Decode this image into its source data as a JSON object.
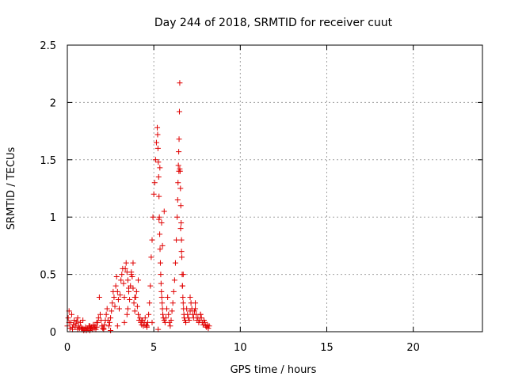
{
  "chart_data": {
    "type": "scatter",
    "title": "Day 244 of 2018, SRMTID for receiver cuut",
    "xlabel": "GPS time / hours",
    "ylabel": "SRMTID / TECUs",
    "xlim": [
      0,
      24
    ],
    "ylim": [
      0,
      2.5
    ],
    "xticks": [
      0,
      5,
      10,
      15,
      20
    ],
    "xtick_labels": [
      "0",
      "5",
      "10",
      "15",
      "20"
    ],
    "yticks": [
      0,
      0.5,
      1,
      1.5,
      2,
      2.5
    ],
    "ytick_labels": [
      "0",
      "0.5",
      "1",
      "1.5",
      "2",
      "2.5"
    ],
    "grid": true,
    "marker": "+",
    "color": "#e00000",
    "series": [
      {
        "name": "SRMTID",
        "x": [
          0.0,
          0.05,
          0.1,
          0.15,
          0.2,
          0.25,
          0.3,
          0.35,
          0.4,
          0.45,
          0.5,
          0.55,
          0.6,
          0.65,
          0.7,
          0.75,
          0.8,
          0.85,
          0.9,
          0.95,
          1.0,
          1.05,
          1.1,
          1.15,
          1.2,
          1.25,
          1.3,
          1.35,
          1.4,
          1.45,
          1.5,
          1.55,
          1.6,
          1.65,
          1.7,
          1.75,
          1.8,
          1.85,
          1.9,
          1.95,
          2.0,
          2.05,
          2.1,
          2.15,
          2.2,
          2.25,
          2.3,
          2.35,
          2.4,
          2.45,
          2.5,
          2.55,
          2.6,
          2.65,
          2.7,
          2.75,
          2.8,
          2.85,
          2.9,
          2.95,
          3.0,
          3.05,
          3.1,
          3.15,
          3.2,
          3.25,
          3.3,
          3.35,
          3.4,
          3.45,
          3.5,
          3.55,
          3.6,
          3.65,
          3.7,
          3.75,
          3.8,
          3.85,
          3.9,
          3.95,
          4.0,
          4.05,
          4.1,
          4.15,
          4.2,
          4.25,
          4.3,
          4.35,
          4.4,
          4.45,
          4.5,
          4.55,
          4.6,
          4.65,
          4.7,
          4.75,
          4.8,
          4.85,
          4.9,
          4.95,
          5.0,
          5.05,
          5.1,
          5.15,
          5.2,
          5.22,
          5.24,
          5.26,
          5.28,
          5.3,
          5.32,
          5.34,
          5.36,
          5.38,
          5.4,
          5.42,
          5.44,
          5.46,
          5.48,
          5.5,
          5.52,
          5.55,
          5.6,
          5.65,
          5.7,
          5.75,
          5.8,
          5.85,
          5.9,
          5.95,
          6.0,
          6.05,
          6.1,
          6.15,
          6.2,
          6.25,
          6.3,
          6.35,
          6.38,
          6.4,
          6.42,
          6.44,
          6.46,
          6.48,
          6.5,
          6.52,
          6.54,
          6.56,
          6.58,
          6.6,
          6.62,
          6.64,
          6.66,
          6.68,
          6.7,
          6.72,
          6.74,
          6.76,
          6.8,
          6.85,
          6.9,
          6.95,
          7.0,
          7.05,
          7.1,
          7.15,
          7.2,
          7.25,
          7.3,
          7.35,
          7.4,
          7.45,
          7.5,
          7.55,
          7.6,
          7.65,
          7.7,
          7.75,
          7.8,
          7.85,
          7.9,
          7.95,
          8.0,
          8.05,
          8.1,
          8.15,
          8.2,
          0.1,
          0.3,
          0.6,
          0.9,
          1.3,
          1.7,
          2.1,
          2.5,
          2.9,
          3.3,
          3.45,
          3.5,
          3.55,
          3.7,
          3.8,
          3.9,
          4.1,
          4.3,
          4.6,
          4.9,
          5.25,
          5.3,
          5.35,
          5.45,
          5.5,
          5.6,
          6.45,
          6.5,
          6.55,
          6.6,
          6.65,
          6.7,
          7.1,
          7.4,
          7.7
        ],
        "y": [
          0.05,
          0.12,
          0.18,
          0.03,
          0.08,
          0.15,
          0.02,
          0.06,
          0.1,
          0.04,
          0.07,
          0.09,
          0.12,
          0.05,
          0.03,
          0.08,
          0.04,
          0.02,
          0.03,
          0.01,
          0.02,
          0.04,
          0.01,
          0.03,
          0.02,
          0.05,
          0.01,
          0.03,
          0.04,
          0.02,
          0.06,
          0.03,
          0.05,
          0.02,
          0.04,
          0.08,
          0.12,
          0.3,
          0.15,
          0.1,
          0.05,
          0.03,
          0.02,
          0.06,
          0.1,
          0.15,
          0.2,
          0.1,
          0.05,
          0.08,
          0.12,
          0.18,
          0.25,
          0.35,
          0.3,
          0.22,
          0.4,
          0.48,
          0.35,
          0.28,
          0.2,
          0.32,
          0.45,
          0.5,
          0.55,
          0.42,
          0.3,
          0.55,
          0.6,
          0.52,
          0.45,
          0.35,
          0.28,
          0.4,
          0.52,
          0.48,
          0.38,
          0.25,
          0.18,
          0.3,
          0.35,
          0.22,
          0.15,
          0.1,
          0.12,
          0.08,
          0.06,
          0.1,
          0.05,
          0.08,
          0.12,
          0.06,
          0.04,
          0.08,
          0.15,
          0.25,
          0.4,
          0.65,
          0.8,
          1.0,
          1.2,
          1.3,
          1.5,
          1.65,
          1.78,
          1.72,
          1.6,
          1.48,
          1.35,
          1.18,
          1.0,
          0.85,
          0.72,
          0.6,
          0.5,
          0.42,
          0.35,
          0.3,
          0.25,
          0.2,
          0.15,
          0.12,
          0.1,
          0.08,
          0.12,
          0.2,
          0.3,
          0.15,
          0.08,
          0.05,
          0.1,
          0.18,
          0.25,
          0.35,
          0.45,
          0.6,
          0.8,
          1.0,
          1.15,
          1.3,
          1.45,
          1.57,
          1.68,
          1.92,
          2.17,
          1.4,
          1.25,
          1.1,
          0.95,
          0.8,
          0.65,
          0.5,
          0.4,
          0.3,
          0.25,
          0.2,
          0.15,
          0.12,
          0.1,
          0.08,
          0.2,
          0.15,
          0.12,
          0.1,
          0.18,
          0.25,
          0.2,
          0.15,
          0.12,
          0.18,
          0.2,
          0.15,
          0.1,
          0.12,
          0.08,
          0.1,
          0.15,
          0.12,
          0.08,
          0.06,
          0.1,
          0.08,
          0.05,
          0.04,
          0.06,
          0.03,
          0.05,
          0.08,
          0.04,
          0.02,
          0.1,
          0.05,
          0.08,
          0.03,
          0.01,
          0.05,
          0.08,
          0.15,
          0.2,
          0.38,
          0.5,
          0.6,
          0.3,
          0.45,
          0.1,
          0.05,
          0.08,
          0.02,
          0.98,
          1.43,
          0.95,
          0.75,
          1.05,
          1.4,
          1.42,
          0.9,
          0.7,
          0.4,
          0.5,
          0.3,
          0.25,
          0.15
        ],
        "note": "point values estimated from the scatter plot"
      }
    ]
  }
}
